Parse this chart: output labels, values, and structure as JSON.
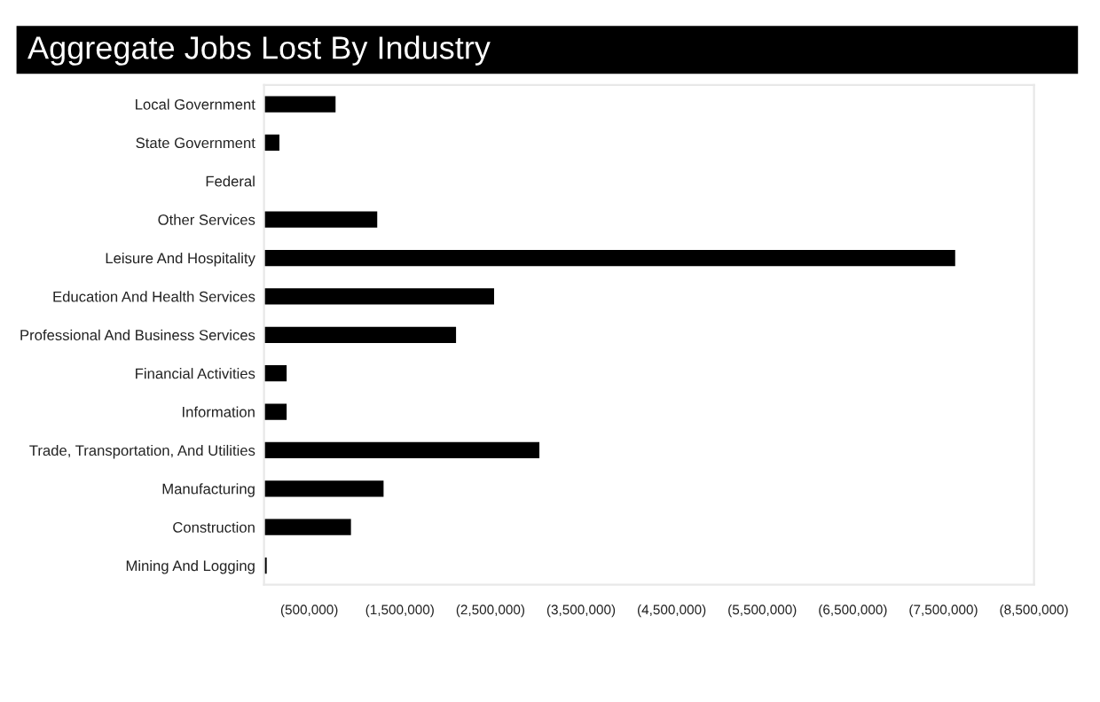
{
  "chart_data": {
    "type": "bar",
    "orientation": "horizontal",
    "title": "Aggregate Jobs Lost By Industry",
    "categories": [
      "Local Government",
      "State Government",
      "Federal",
      "Other Services",
      "Leisure And Hospitality",
      "Education And Health Services",
      "Professional And Business Services",
      "Financial Activities",
      "Information",
      "Trade, Transportation, And Utilities",
      "Manufacturing",
      "Construction",
      "Mining And Logging"
    ],
    "values": [
      -790000,
      -170000,
      0,
      -1250000,
      -7630000,
      -2540000,
      -2120000,
      -250000,
      -250000,
      -3040000,
      -1320000,
      -960000,
      -30000
    ],
    "color": "#000000",
    "xlim": [
      0,
      -8500000
    ],
    "xticks": [
      {
        "value": -500000,
        "label": "(500,000)"
      },
      {
        "value": -1500000,
        "label": "(1,500,000)"
      },
      {
        "value": -2500000,
        "label": "(2,500,000)"
      },
      {
        "value": -3500000,
        "label": "(3,500,000)"
      },
      {
        "value": -4500000,
        "label": "(4,500,000)"
      },
      {
        "value": -5500000,
        "label": "(5,500,000)"
      },
      {
        "value": -6500000,
        "label": "(6,500,000)"
      },
      {
        "value": -7500000,
        "label": "(7,500,000)"
      },
      {
        "value": -8500000,
        "label": "(8,500,000)"
      }
    ],
    "grid": false,
    "legend": false
  }
}
